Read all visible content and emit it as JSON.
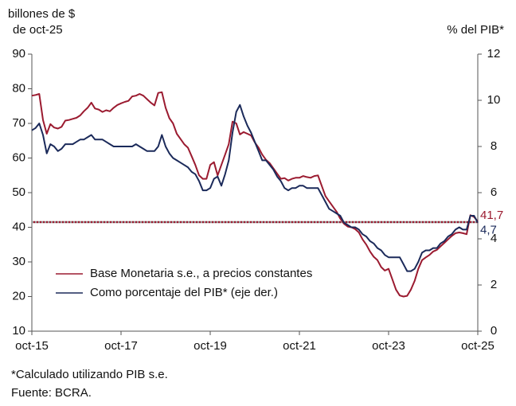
{
  "chart_data": {
    "type": "line",
    "y_label": [
      "billones de $",
      "de oct-25"
    ],
    "y2_label": "% del PIB*",
    "notes": [
      "*Calculado utilizando PIB s.e.",
      "Fuente: BCRA."
    ],
    "categories": [
      "oct-15",
      null,
      null,
      null,
      null,
      null,
      null,
      null,
      null,
      null,
      null,
      null,
      null,
      null,
      null,
      null,
      null,
      null,
      null,
      null,
      null,
      null,
      null,
      null,
      "oct-17",
      null,
      null,
      null,
      null,
      null,
      null,
      null,
      null,
      null,
      null,
      null,
      null,
      null,
      null,
      null,
      null,
      null,
      null,
      null,
      null,
      null,
      null,
      null,
      "oct-19",
      null,
      null,
      null,
      null,
      null,
      null,
      null,
      null,
      null,
      null,
      null,
      null,
      null,
      null,
      null,
      null,
      null,
      null,
      null,
      null,
      null,
      null,
      null,
      "oct-21",
      null,
      null,
      null,
      null,
      null,
      null,
      null,
      null,
      null,
      null,
      null,
      null,
      null,
      null,
      null,
      null,
      null,
      null,
      null,
      null,
      null,
      null,
      null,
      "oct-23",
      null,
      null,
      null,
      null,
      null,
      null,
      null,
      null,
      null,
      null,
      null,
      null,
      null,
      null,
      null,
      null,
      null,
      null,
      null,
      null,
      null,
      null,
      null,
      "oct-25"
    ],
    "ylim": [
      10,
      90
    ],
    "yticks": [
      10,
      20,
      30,
      40,
      50,
      60,
      70,
      80,
      90
    ],
    "y2lim": [
      0,
      12
    ],
    "y2ticks": [
      0,
      2,
      4,
      6,
      8,
      10,
      12
    ],
    "reference_line": 41.5,
    "legend": "bottom-left",
    "series": [
      {
        "name": "Base Monetaria s.e., a precios constantes",
        "color": "#9b1b30",
        "values": [
          78,
          78.2,
          78.5,
          71,
          67,
          69.8,
          68.8,
          68.5,
          69,
          70.8,
          71,
          71.3,
          71.6,
          72.3,
          73.5,
          74.5,
          76,
          74.3,
          74,
          73.3,
          73.8,
          73.5,
          74.5,
          75.3,
          75.8,
          76.2,
          76.5,
          77.8,
          78,
          78.5,
          78,
          77,
          76,
          75.2,
          78.8,
          79,
          74.5,
          71.5,
          70,
          67,
          65.5,
          64,
          63,
          60.5,
          58,
          55,
          54,
          54,
          58,
          58.8,
          55,
          58,
          61,
          64,
          70.5,
          70,
          66.8,
          67.5,
          67,
          66.5,
          64.5,
          63,
          61,
          59.5,
          58.5,
          57,
          55.5,
          54,
          54.2,
          53.5,
          54,
          54.3,
          54.3,
          54.8,
          54.5,
          54.3,
          54.8,
          55,
          52,
          49,
          47.5,
          46,
          44.5,
          42.5,
          41,
          40.2,
          40,
          39.5,
          38.5,
          36.5,
          35,
          33,
          31.5,
          30.5,
          28.5,
          27.5,
          28,
          25,
          22,
          20.3,
          20,
          20.2,
          22,
          24.5,
          28,
          30.5,
          31.3,
          32,
          33,
          33.5,
          34.5,
          35.5,
          36.5,
          37.5,
          38.3,
          38.5,
          38.3,
          38,
          43.5,
          43,
          41.7
        ],
        "value_labels": [
          null,
          null,
          null,
          null,
          null,
          null,
          null,
          null,
          null,
          null,
          null,
          null,
          null,
          null,
          null,
          null,
          null,
          null,
          null,
          null,
          null,
          null,
          null,
          null,
          null,
          null,
          null,
          null,
          null,
          null,
          null,
          null,
          null,
          null,
          null,
          null,
          null,
          null,
          null,
          null,
          null,
          null,
          null,
          null,
          null,
          null,
          null,
          null,
          null,
          null,
          null,
          null,
          null,
          null,
          null,
          null,
          null,
          null,
          null,
          null,
          null,
          null,
          null,
          null,
          null,
          null,
          null,
          null,
          null,
          null,
          null,
          null,
          null,
          null,
          null,
          null,
          null,
          null,
          null,
          null,
          null,
          null,
          null,
          null,
          null,
          null,
          null,
          null,
          null,
          null,
          null,
          null,
          null,
          null,
          null,
          null,
          null,
          null,
          null,
          null,
          null,
          null,
          null,
          null,
          null,
          null,
          null,
          null,
          null,
          null,
          null,
          null,
          null,
          null,
          null,
          null,
          null,
          null,
          null,
          null,
          "41,7"
        ]
      },
      {
        "name": "Como porcentaje del PIB* (eje der.)",
        "color": "#1b2a5a",
        "axis": "y2",
        "values": [
          8.7,
          8.8,
          9.0,
          8.5,
          7.7,
          8.1,
          8.0,
          7.8,
          7.9,
          8.1,
          8.1,
          8.1,
          8.2,
          8.3,
          8.3,
          8.4,
          8.5,
          8.3,
          8.3,
          8.3,
          8.2,
          8.1,
          8.0,
          8.0,
          8.0,
          8.0,
          8.0,
          8.0,
          8.1,
          8.0,
          7.9,
          7.8,
          7.8,
          7.8,
          8.0,
          8.5,
          8.0,
          7.7,
          7.5,
          7.4,
          7.3,
          7.2,
          7.1,
          6.9,
          6.8,
          6.5,
          6.1,
          6.1,
          6.2,
          6.6,
          6.7,
          6.3,
          6.8,
          7.4,
          8.6,
          9.5,
          9.8,
          9.3,
          8.9,
          8.6,
          8.2,
          7.8,
          7.4,
          7.4,
          7.2,
          7.0,
          6.7,
          6.5,
          6.2,
          6.1,
          6.2,
          6.2,
          6.3,
          6.3,
          6.2,
          6.2,
          6.2,
          6.2,
          5.9,
          5.6,
          5.3,
          5.2,
          5.1,
          5.0,
          4.7,
          4.6,
          4.5,
          4.5,
          4.4,
          4.2,
          4.1,
          3.9,
          3.8,
          3.6,
          3.5,
          3.3,
          3.2,
          3.2,
          3.2,
          3.2,
          2.9,
          2.6,
          2.6,
          2.7,
          3.0,
          3.4,
          3.5,
          3.5,
          3.6,
          3.6,
          3.8,
          3.9,
          4.1,
          4.2,
          4.4,
          4.5,
          4.4,
          4.4,
          5.0,
          5.0,
          4.7
        ],
        "value_labels": [
          null,
          null,
          null,
          null,
          null,
          null,
          null,
          null,
          null,
          null,
          null,
          null,
          null,
          null,
          null,
          null,
          null,
          null,
          null,
          null,
          null,
          null,
          null,
          null,
          null,
          null,
          null,
          null,
          null,
          null,
          null,
          null,
          null,
          null,
          null,
          null,
          null,
          null,
          null,
          null,
          null,
          null,
          null,
          null,
          null,
          null,
          null,
          null,
          null,
          null,
          null,
          null,
          null,
          null,
          null,
          null,
          null,
          null,
          null,
          null,
          null,
          null,
          null,
          null,
          null,
          null,
          null,
          null,
          null,
          null,
          null,
          null,
          null,
          null,
          null,
          null,
          null,
          null,
          null,
          null,
          null,
          null,
          null,
          null,
          null,
          null,
          null,
          null,
          null,
          null,
          null,
          null,
          null,
          null,
          null,
          null,
          null,
          null,
          null,
          null,
          null,
          null,
          null,
          null,
          null,
          null,
          null,
          null,
          null,
          null,
          null,
          null,
          null,
          null,
          null,
          null,
          null,
          null,
          null,
          null,
          "4,7"
        ]
      }
    ]
  }
}
